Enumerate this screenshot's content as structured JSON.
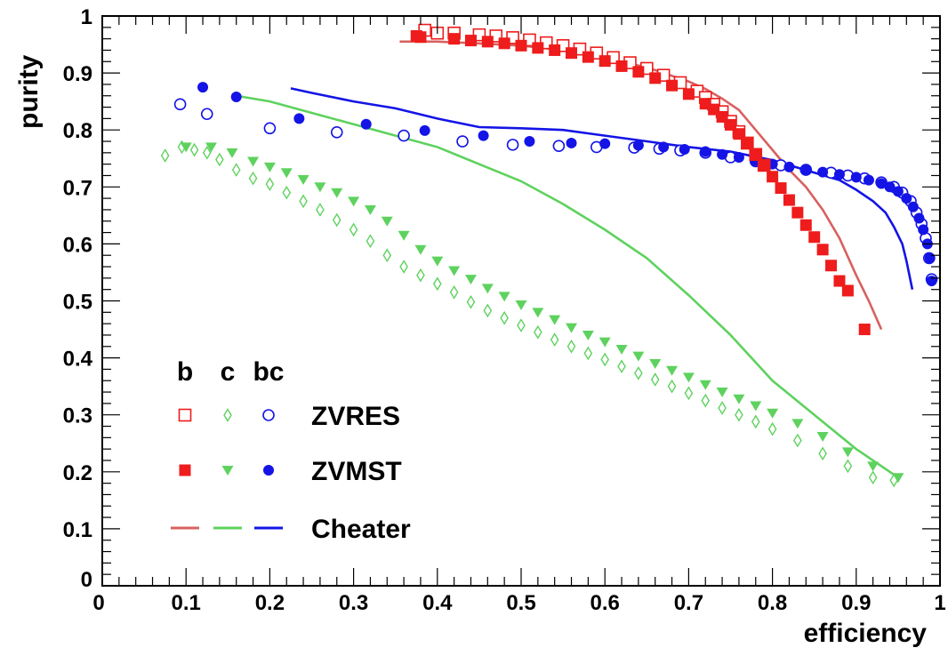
{
  "chart_data": {
    "type": "scatter",
    "title": "",
    "xlabel": "efficiency",
    "ylabel": "purity",
    "xlim": [
      0,
      1
    ],
    "ylim": [
      0,
      1
    ],
    "grid": false,
    "xticks": [
      "0",
      "0.1",
      "0.2",
      "0.3",
      "0.4",
      "0.5",
      "0.6",
      "0.7",
      "0.8",
      "0.9",
      "1"
    ],
    "yticks": [
      "0",
      "0.1",
      "0.2",
      "0.3",
      "0.4",
      "0.5",
      "0.6",
      "0.7",
      "0.8",
      "0.9",
      "1"
    ],
    "colors": {
      "b": "#ee1c1c",
      "c": "#5ed25e",
      "bc": "#1414e6",
      "cheater_b": "#d96060"
    },
    "legend": {
      "placement": "bottom-left",
      "columns": [
        "b",
        "c",
        "bc"
      ],
      "rows": [
        "ZVRES",
        "ZVMST",
        "Cheater"
      ]
    },
    "series": [
      {
        "name": "ZVRES",
        "flavor": "b",
        "marker": "open-square",
        "x": [
          0.385,
          0.4,
          0.42,
          0.45,
          0.47,
          0.49,
          0.51,
          0.53,
          0.55,
          0.57,
          0.59,
          0.61,
          0.63,
          0.65,
          0.67,
          0.69,
          0.71,
          0.72,
          0.73,
          0.74,
          0.75,
          0.76,
          0.77,
          0.78,
          0.79
        ],
        "y": [
          0.975,
          0.97,
          0.97,
          0.967,
          0.965,
          0.962,
          0.958,
          0.953,
          0.948,
          0.942,
          0.935,
          0.927,
          0.918,
          0.908,
          0.896,
          0.883,
          0.868,
          0.857,
          0.845,
          0.832,
          0.815,
          0.797,
          0.777,
          0.757,
          0.738
        ]
      },
      {
        "name": "ZVMST",
        "flavor": "b",
        "marker": "filled-square",
        "x": [
          0.375,
          0.38,
          0.42,
          0.44,
          0.46,
          0.48,
          0.5,
          0.52,
          0.54,
          0.56,
          0.58,
          0.6,
          0.62,
          0.64,
          0.66,
          0.68,
          0.7,
          0.72,
          0.73,
          0.74,
          0.75,
          0.76,
          0.77,
          0.78,
          0.79,
          0.8,
          0.81,
          0.82,
          0.83,
          0.84,
          0.85,
          0.86,
          0.87,
          0.88,
          0.89,
          0.91
        ],
        "y": [
          0.965,
          0.963,
          0.96,
          0.957,
          0.955,
          0.952,
          0.948,
          0.944,
          0.94,
          0.935,
          0.928,
          0.921,
          0.912,
          0.902,
          0.891,
          0.878,
          0.863,
          0.846,
          0.836,
          0.823,
          0.809,
          0.793,
          0.776,
          0.758,
          0.738,
          0.718,
          0.698,
          0.677,
          0.655,
          0.633,
          0.612,
          0.59,
          0.562,
          0.535,
          0.518,
          0.45
        ]
      },
      {
        "name": "ZVRES",
        "flavor": "c",
        "marker": "open-diamond",
        "x": [
          0.075,
          0.095,
          0.11,
          0.125,
          0.14,
          0.16,
          0.18,
          0.2,
          0.22,
          0.24,
          0.26,
          0.28,
          0.3,
          0.32,
          0.34,
          0.36,
          0.38,
          0.4,
          0.42,
          0.44,
          0.46,
          0.48,
          0.5,
          0.52,
          0.54,
          0.56,
          0.58,
          0.6,
          0.62,
          0.64,
          0.66,
          0.68,
          0.7,
          0.72,
          0.74,
          0.76,
          0.78,
          0.8,
          0.83,
          0.86,
          0.89,
          0.92,
          0.945
        ],
        "y": [
          0.755,
          0.77,
          0.765,
          0.76,
          0.748,
          0.73,
          0.715,
          0.705,
          0.69,
          0.675,
          0.66,
          0.642,
          0.625,
          0.605,
          0.58,
          0.56,
          0.545,
          0.53,
          0.515,
          0.498,
          0.483,
          0.47,
          0.457,
          0.445,
          0.432,
          0.42,
          0.408,
          0.397,
          0.385,
          0.373,
          0.362,
          0.35,
          0.338,
          0.325,
          0.312,
          0.3,
          0.288,
          0.275,
          0.255,
          0.232,
          0.21,
          0.19,
          0.185
        ]
      },
      {
        "name": "ZVMST",
        "flavor": "c",
        "marker": "filled-triangle-down",
        "x": [
          0.1,
          0.13,
          0.155,
          0.18,
          0.2,
          0.22,
          0.24,
          0.26,
          0.28,
          0.3,
          0.32,
          0.34,
          0.36,
          0.38,
          0.4,
          0.42,
          0.44,
          0.46,
          0.48,
          0.5,
          0.52,
          0.54,
          0.56,
          0.58,
          0.6,
          0.62,
          0.64,
          0.66,
          0.68,
          0.7,
          0.72,
          0.74,
          0.76,
          0.78,
          0.8,
          0.83,
          0.86,
          0.89,
          0.92,
          0.95
        ],
        "y": [
          0.77,
          0.77,
          0.76,
          0.745,
          0.735,
          0.725,
          0.713,
          0.7,
          0.69,
          0.675,
          0.66,
          0.64,
          0.615,
          0.59,
          0.57,
          0.553,
          0.538,
          0.522,
          0.508,
          0.493,
          0.48,
          0.467,
          0.453,
          0.44,
          0.428,
          0.415,
          0.403,
          0.39,
          0.378,
          0.366,
          0.353,
          0.34,
          0.328,
          0.316,
          0.303,
          0.285,
          0.262,
          0.235,
          0.21,
          0.19
        ]
      },
      {
        "name": "ZVRES",
        "flavor": "bc",
        "marker": "open-circle",
        "x": [
          0.093,
          0.125,
          0.2,
          0.28,
          0.36,
          0.43,
          0.49,
          0.545,
          0.59,
          0.635,
          0.665,
          0.69,
          0.72,
          0.75,
          0.78,
          0.81,
          0.84,
          0.87,
          0.89,
          0.91,
          0.93,
          0.945,
          0.955,
          0.965,
          0.972,
          0.978,
          0.983,
          0.987,
          0.99
        ],
        "y": [
          0.845,
          0.828,
          0.803,
          0.796,
          0.79,
          0.78,
          0.774,
          0.772,
          0.77,
          0.769,
          0.767,
          0.764,
          0.76,
          0.752,
          0.745,
          0.738,
          0.73,
          0.725,
          0.72,
          0.715,
          0.708,
          0.7,
          0.69,
          0.675,
          0.655,
          0.635,
          0.61,
          0.575,
          0.538
        ]
      },
      {
        "name": "ZVMST",
        "flavor": "bc",
        "marker": "filled-circle",
        "x": [
          0.12,
          0.16,
          0.235,
          0.315,
          0.385,
          0.455,
          0.51,
          0.56,
          0.6,
          0.64,
          0.67,
          0.695,
          0.72,
          0.74,
          0.76,
          0.78,
          0.8,
          0.82,
          0.84,
          0.86,
          0.88,
          0.9,
          0.915,
          0.93,
          0.94,
          0.95,
          0.96,
          0.968,
          0.975,
          0.98,
          0.985,
          0.988,
          0.99
        ],
        "y": [
          0.875,
          0.858,
          0.82,
          0.81,
          0.799,
          0.79,
          0.78,
          0.777,
          0.776,
          0.773,
          0.77,
          0.766,
          0.762,
          0.757,
          0.752,
          0.746,
          0.74,
          0.735,
          0.73,
          0.726,
          0.722,
          0.717,
          0.712,
          0.706,
          0.7,
          0.692,
          0.68,
          0.665,
          0.645,
          0.625,
          0.6,
          0.575,
          0.535
        ]
      },
      {
        "name": "Cheater",
        "flavor": "b",
        "marker": "line",
        "x": [
          0.355,
          0.4,
          0.45,
          0.5,
          0.55,
          0.6,
          0.65,
          0.7,
          0.72,
          0.74,
          0.76,
          0.78,
          0.8,
          0.82,
          0.84,
          0.86,
          0.88,
          0.9,
          0.915,
          0.93
        ],
        "y": [
          0.955,
          0.955,
          0.952,
          0.948,
          0.94,
          0.925,
          0.91,
          0.885,
          0.872,
          0.855,
          0.835,
          0.8,
          0.765,
          0.73,
          0.7,
          0.66,
          0.61,
          0.545,
          0.5,
          0.45
        ]
      },
      {
        "name": "Cheater",
        "flavor": "c",
        "marker": "line",
        "x": [
          0.16,
          0.2,
          0.25,
          0.3,
          0.35,
          0.4,
          0.45,
          0.5,
          0.55,
          0.6,
          0.65,
          0.7,
          0.75,
          0.8,
          0.85,
          0.9,
          0.95
        ],
        "y": [
          0.86,
          0.85,
          0.83,
          0.81,
          0.79,
          0.77,
          0.74,
          0.71,
          0.67,
          0.625,
          0.575,
          0.51,
          0.44,
          0.36,
          0.3,
          0.24,
          0.19
        ]
      },
      {
        "name": "Cheater",
        "flavor": "bc",
        "marker": "line",
        "x": [
          0.225,
          0.25,
          0.3,
          0.35,
          0.4,
          0.45,
          0.5,
          0.55,
          0.6,
          0.65,
          0.7,
          0.75,
          0.8,
          0.85,
          0.88,
          0.9,
          0.92,
          0.935,
          0.945,
          0.955,
          0.96,
          0.967
        ],
        "y": [
          0.873,
          0.865,
          0.85,
          0.838,
          0.82,
          0.805,
          0.803,
          0.8,
          0.79,
          0.78,
          0.77,
          0.762,
          0.747,
          0.725,
          0.712,
          0.695,
          0.675,
          0.655,
          0.63,
          0.6,
          0.57,
          0.52
        ]
      }
    ]
  }
}
